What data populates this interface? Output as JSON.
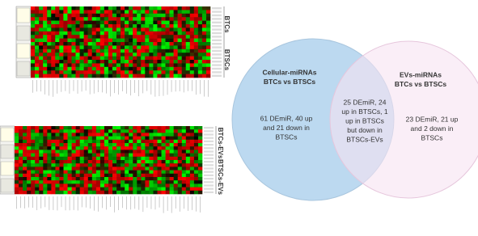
{
  "heatmaps": [
    {
      "groups": [
        "BTCs",
        "BTSCs"
      ]
    },
    {
      "groups": [
        "BTCs-EVs",
        "BTSCs-EVs"
      ]
    }
  ],
  "venn": {
    "left": {
      "title": [
        "Cellular-miRNAs",
        "BTCs vs BTSCs"
      ],
      "text": [
        "61 DEmiR, 40 up",
        "and 21 down in",
        "BTSCs"
      ]
    },
    "overlap": {
      "text": [
        "25 DEmiR, 24",
        "up in BTSCs, 1",
        "up in BTSCs",
        "but down in",
        "BTSCs-EVs"
      ]
    },
    "right": {
      "title": [
        "EVs-miRNAs",
        "BTCs vs BTSCs"
      ],
      "text": [
        "23 DEmiR, 21 up",
        "and 2 down in",
        "BTSCs"
      ]
    }
  }
}
